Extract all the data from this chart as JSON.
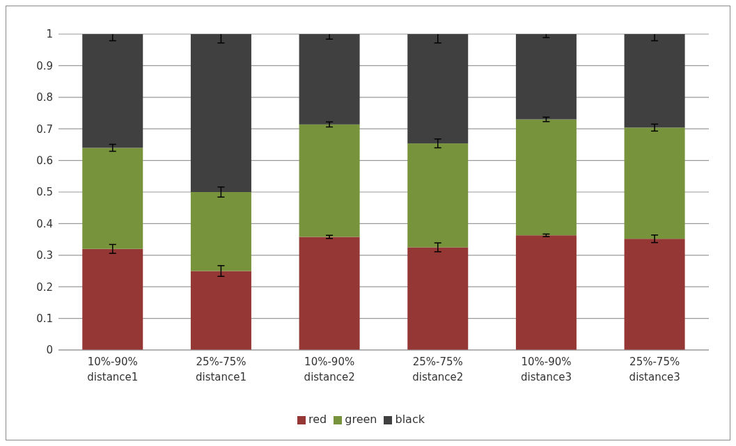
{
  "chart_data": {
    "type": "bar",
    "stacked": true,
    "categories": [
      "10%-90% distance1",
      "25%-75% distance1",
      "10%-90% distance2",
      "25%-75% distance2",
      "10%-90% distance3",
      "25%-75% distance3"
    ],
    "series": [
      {
        "name": "red",
        "color": "#953735",
        "values": [
          0.32,
          0.25,
          0.358,
          0.325,
          0.363,
          0.352
        ],
        "errors": [
          0.014,
          0.017,
          0.005,
          0.014,
          0.004,
          0.012
        ]
      },
      {
        "name": "green",
        "color": "#77933c",
        "values": [
          0.32,
          0.25,
          0.356,
          0.329,
          0.367,
          0.352
        ],
        "errors": [
          0.011,
          0.016,
          0.008,
          0.014,
          0.007,
          0.011
        ]
      },
      {
        "name": "black",
        "color": "#404040",
        "values": [
          0.36,
          0.5,
          0.286,
          0.346,
          0.27,
          0.296
        ],
        "errors": [
          0.021,
          0.028,
          0.016,
          0.028,
          0.011,
          0.021
        ]
      }
    ],
    "ylim": [
      0,
      1
    ],
    "yticks": [
      0,
      0.1,
      0.2,
      0.3,
      0.4,
      0.5,
      0.6,
      0.7,
      0.8,
      0.9,
      1
    ],
    "grid": "y",
    "legend": "bottom"
  }
}
